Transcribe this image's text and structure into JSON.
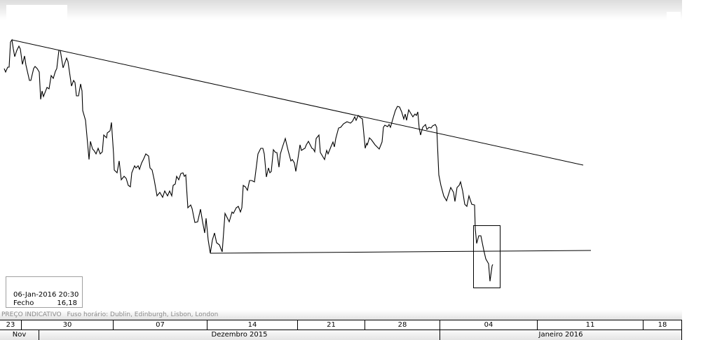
{
  "info": {
    "datetime": "06-Jan-2016 20:30",
    "label": "Fecho",
    "value": "16,18"
  },
  "status": {
    "price_type": "PREÇO INDICATIVO",
    "timezone": "Fuso horário: Dublin, Edinburgh, Lisbon, London"
  },
  "timeline": {
    "days": [
      "23",
      "30",
      "07",
      "14",
      "21",
      "28",
      "04",
      "11",
      "18"
    ],
    "months": [
      "Nov",
      "Dezembro 2015",
      "Janeiro 2016"
    ]
  },
  "colors": {
    "line": "#000000",
    "background": "#ffffff"
  }
}
